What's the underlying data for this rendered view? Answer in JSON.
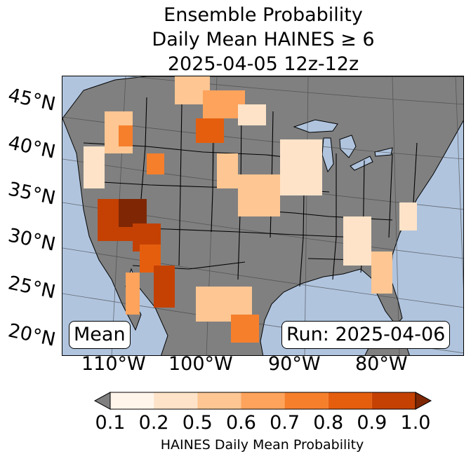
{
  "title": {
    "line1": "Ensemble Probability",
    "line2": "Daily Mean HAINES ≥ 6",
    "line3": "2025-04-05 12z-12z"
  },
  "map": {
    "ocean_color": "#b0c4de",
    "land_color": "#808080",
    "lat_labels": [
      "45°N",
      "40°N",
      "35°N",
      "30°N",
      "25°N",
      "20°N"
    ],
    "lon_labels": [
      "110°W",
      "100°W",
      "90°W",
      "80°W"
    ],
    "mean_label": "Mean",
    "run_label": "Run: 2025-04-06"
  },
  "colorbar": {
    "levels": [
      "0.1",
      "0.2",
      "0.5",
      "0.6",
      "0.7",
      "0.8",
      "0.9",
      "1.0"
    ],
    "colors": [
      "#fff5eb",
      "#fee3c8",
      "#fdc692",
      "#fda35c",
      "#f67f2c",
      "#e55e0e",
      "#c44103",
      "#7f2704"
    ],
    "under_color": "#808080",
    "label": "HAINES Daily Mean Probability"
  }
}
